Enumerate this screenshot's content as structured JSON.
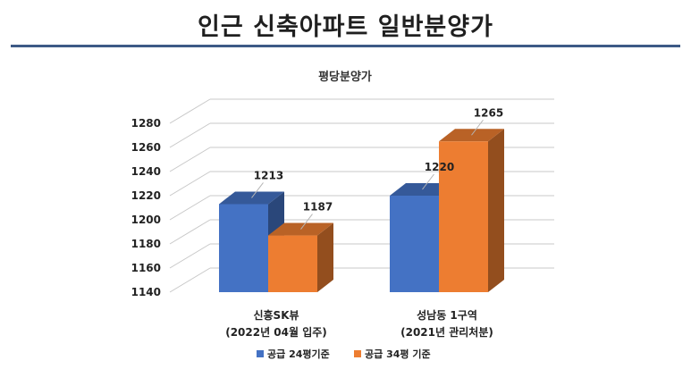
{
  "page": {
    "title": "인근 신축아파트 일반분양가",
    "accent_color": "#3d5a86"
  },
  "chart_data": {
    "type": "bar",
    "title": "평당분양가",
    "categories": [
      [
        "신흥SK뷰",
        "(2022년 04월 입주)"
      ],
      [
        "성남동 1구역",
        "(2021년 관리처분)"
      ]
    ],
    "series": [
      {
        "name": "공급 24평기준",
        "values": [
          1213,
          1220
        ],
        "color": "#4472c4"
      },
      {
        "name": "공급 34평 기준",
        "values": [
          1187,
          1265
        ],
        "color": "#ed7d31"
      }
    ],
    "ylim": [
      1140,
      1280
    ],
    "yticks": [
      1140,
      1160,
      1180,
      1200,
      1220,
      1240,
      1260,
      1280
    ],
    "grid": true,
    "legend_position": "bottom",
    "style": "3d-column"
  }
}
